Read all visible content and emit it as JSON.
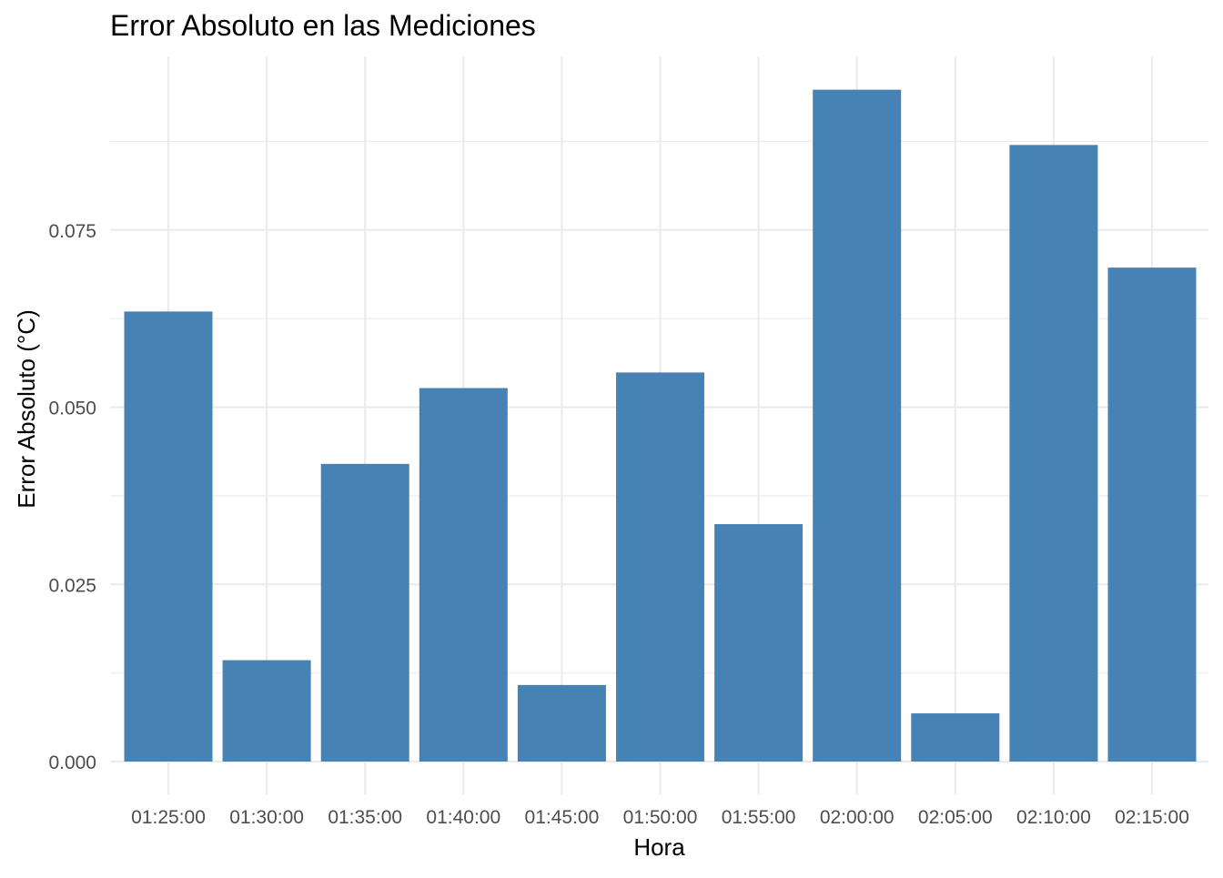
{
  "chart_data": {
    "type": "bar",
    "title": "Error Absoluto en las Mediciones",
    "xlabel": "Hora",
    "ylabel": "Error Absoluto (°C)",
    "categories": [
      "01:25:00",
      "01:30:00",
      "01:35:00",
      "01:40:00",
      "01:45:00",
      "01:50:00",
      "01:55:00",
      "02:00:00",
      "02:05:00",
      "02:10:00",
      "02:15:00"
    ],
    "values": [
      0.0635,
      0.0143,
      0.042,
      0.0527,
      0.0108,
      0.0549,
      0.0335,
      0.0948,
      0.0068,
      0.087,
      0.0697
    ],
    "yticks": [
      "0.000",
      "0.025",
      "0.050",
      "0.075"
    ],
    "ytick_values": [
      0,
      0.025,
      0.05,
      0.075
    ],
    "ylim": [
      0,
      0.0995
    ],
    "grid": true,
    "legend": "none",
    "bar_color": "#4682B4",
    "grid_color": "#EBEBEB"
  }
}
